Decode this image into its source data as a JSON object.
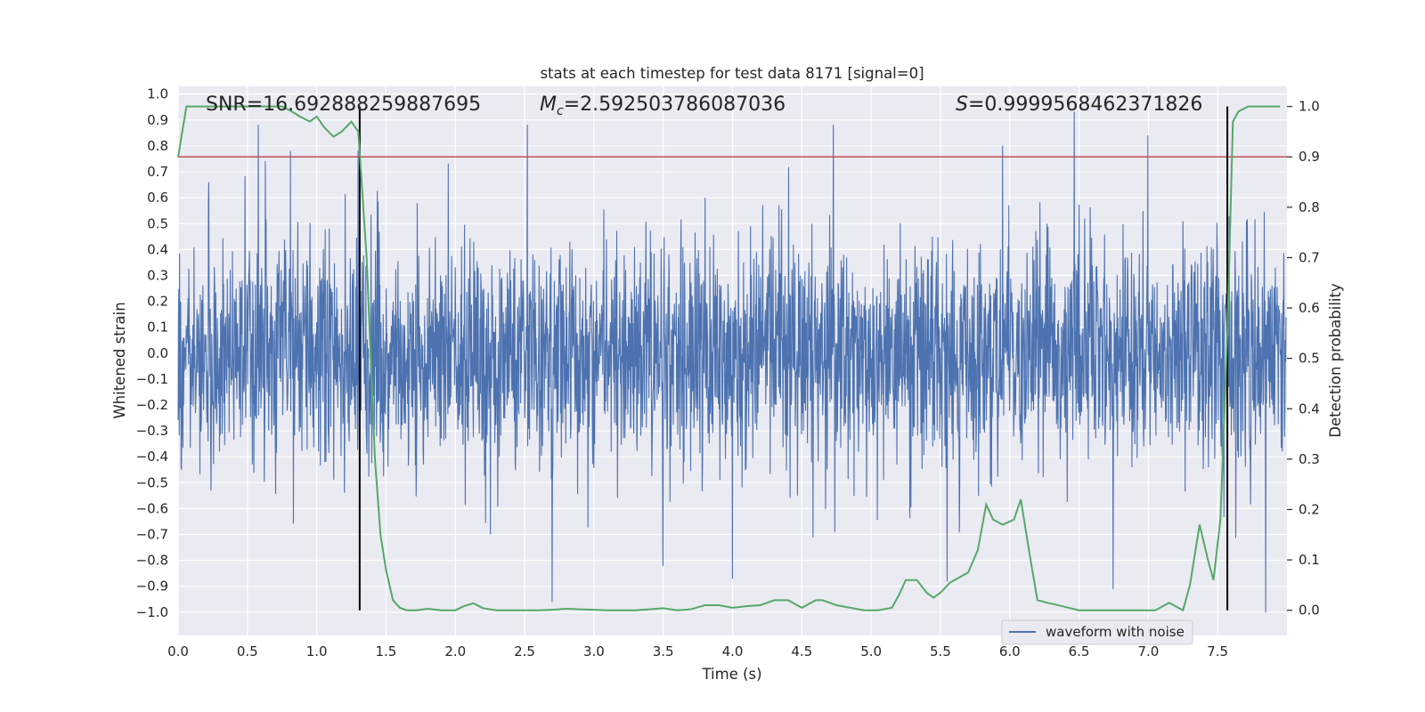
{
  "chart_data": {
    "type": "line",
    "title": "stats at each timestep for test data 8171 [signal=0]",
    "xlabel": "Time (s)",
    "ylabel_left": "Whitened strain",
    "ylabel_right": "Detection probability",
    "xlim": [
      0.0,
      8.0
    ],
    "ylim_left": [
      -1.09,
      1.03
    ],
    "ylim_right": [
      -0.05,
      1.04
    ],
    "grid": true,
    "x_ticks": [
      0.0,
      0.5,
      1.0,
      1.5,
      2.0,
      2.5,
      3.0,
      3.5,
      4.0,
      4.5,
      5.0,
      5.5,
      6.0,
      6.5,
      7.0,
      7.5
    ],
    "x_tick_labels": [
      "0.0",
      "0.5",
      "1.0",
      "1.5",
      "2.0",
      "2.5",
      "3.0",
      "3.5",
      "4.0",
      "4.5",
      "5.0",
      "5.5",
      "6.0",
      "6.5",
      "7.0",
      "7.5"
    ],
    "y_ticks_left": [
      1.0,
      0.9,
      0.8,
      0.7,
      0.6,
      0.5,
      0.4,
      0.3,
      0.2,
      0.1,
      0.0,
      -0.1,
      -0.2,
      -0.3,
      -0.4,
      -0.5,
      -0.6,
      -0.7,
      -0.8,
      -0.9,
      -1.0
    ],
    "y_tick_labels_left": [
      "1.0",
      "0.9",
      "0.8",
      "0.7",
      "0.6",
      "0.5",
      "0.4",
      "0.3",
      "0.2",
      "0.1",
      "0.0",
      "−0.1",
      "−0.2",
      "−0.3",
      "−0.4",
      "−0.5",
      "−0.6",
      "−0.7",
      "−0.8",
      "−0.9",
      "−1.0"
    ],
    "y_ticks_right": [
      1.0,
      0.9,
      0.8,
      0.7,
      0.6,
      0.5,
      0.4,
      0.3,
      0.2,
      0.1,
      0.0
    ],
    "y_tick_labels_right": [
      "1.0",
      "0.9",
      "0.8",
      "0.7",
      "0.6",
      "0.5",
      "0.4",
      "0.3",
      "0.2",
      "0.1",
      "0.0"
    ],
    "annotations": {
      "snr": "SNR=16.692888259887695",
      "mc_symbol": "M",
      "mc_sub": "c",
      "mc_value": "=2.592503786087036",
      "s_symbol": "S",
      "s_value": "=0.9999568462371826"
    },
    "series": [
      {
        "name": "waveform with noise",
        "axis": "left",
        "kind": "noise",
        "color": "#4c72b0",
        "amplitude_range": [
          -1.0,
          0.94
        ],
        "spike_positions": [
          0.58,
          0.63,
          0.81,
          1.3,
          1.95,
          2.52,
          2.7,
          3.5,
          4.0,
          4.73,
          5.55,
          5.95,
          6.47,
          6.75,
          7.0,
          7.85
        ],
        "spike_values": [
          0.88,
          0.74,
          0.78,
          0.78,
          0.73,
          0.88,
          -0.96,
          -0.82,
          -0.87,
          0.88,
          -0.88,
          0.8,
          0.93,
          -0.91,
          0.84,
          -1.0
        ]
      },
      {
        "name": "detection probability",
        "axis": "right",
        "kind": "line",
        "color": "#55a868",
        "x": [
          0.0,
          0.06,
          0.15,
          0.25,
          0.35,
          0.45,
          0.55,
          0.65,
          0.75,
          0.82,
          0.88,
          0.95,
          1.0,
          1.05,
          1.12,
          1.18,
          1.25,
          1.3,
          1.36,
          1.42,
          1.46,
          1.5,
          1.55,
          1.6,
          1.65,
          1.72,
          1.8,
          1.9,
          2.0,
          2.06,
          2.13,
          2.2,
          2.3,
          2.4,
          2.5,
          2.6,
          2.7,
          2.8,
          2.9,
          3.0,
          3.1,
          3.2,
          3.3,
          3.4,
          3.5,
          3.6,
          3.7,
          3.8,
          3.9,
          4.0,
          4.1,
          4.2,
          4.3,
          4.4,
          4.5,
          4.6,
          4.65,
          4.75,
          4.85,
          4.95,
          5.05,
          5.15,
          5.2,
          5.25,
          5.33,
          5.4,
          5.45,
          5.5,
          5.57,
          5.7,
          5.77,
          5.83,
          5.88,
          5.95,
          6.03,
          6.08,
          6.15,
          6.2,
          6.27,
          6.35,
          6.5,
          6.7,
          6.9,
          7.05,
          7.15,
          7.25,
          7.3,
          7.37,
          7.43,
          7.47,
          7.52,
          7.57,
          7.61,
          7.65,
          7.72,
          7.82,
          7.95
        ],
        "y": [
          0.9,
          1.0,
          1.0,
          1.0,
          1.0,
          1.0,
          1.0,
          1.0,
          1.0,
          0.99,
          0.98,
          0.97,
          0.98,
          0.96,
          0.94,
          0.95,
          0.97,
          0.95,
          0.7,
          0.3,
          0.15,
          0.08,
          0.02,
          0.005,
          0.0,
          0.0,
          0.003,
          0.0,
          0.0,
          0.008,
          0.014,
          0.004,
          0.0,
          0.0,
          0.0,
          0.0,
          0.001,
          0.003,
          0.002,
          0.001,
          0.0,
          0.0,
          0.0,
          0.002,
          0.004,
          0.0,
          0.002,
          0.01,
          0.01,
          0.005,
          0.008,
          0.01,
          0.02,
          0.02,
          0.005,
          0.02,
          0.02,
          0.01,
          0.005,
          0.0,
          0.0,
          0.005,
          0.03,
          0.06,
          0.06,
          0.035,
          0.025,
          0.035,
          0.055,
          0.075,
          0.12,
          0.21,
          0.18,
          0.17,
          0.18,
          0.22,
          0.1,
          0.02,
          0.015,
          0.01,
          0.0,
          0.0,
          0.0,
          0.0,
          0.015,
          0.0,
          0.05,
          0.17,
          0.1,
          0.06,
          0.18,
          0.55,
          0.97,
          0.99,
          1.0,
          1.0,
          1.0
        ]
      },
      {
        "name": "threshold",
        "axis": "right",
        "kind": "hline",
        "color": "#c44e52",
        "y": 0.9
      },
      {
        "name": "markers",
        "axis": "right",
        "kind": "vlines",
        "color": "#000000",
        "x": [
          1.31,
          7.57
        ],
        "y_range": [
          0.0,
          1.0
        ]
      }
    ],
    "legend": {
      "position": "lower-right",
      "entries": [
        "waveform with noise"
      ]
    }
  }
}
